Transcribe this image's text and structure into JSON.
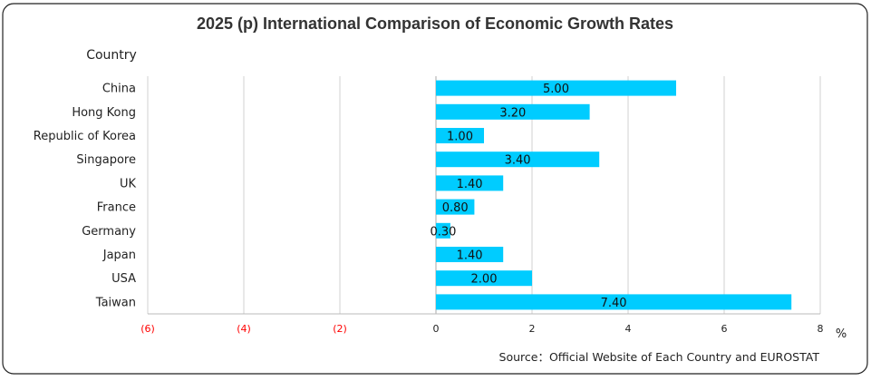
{
  "chart_data": {
    "type": "bar",
    "orientation": "horizontal",
    "title": "2025 (p) International Comparison of Economic Growth Rates",
    "ylabel": "Country",
    "xlabel": "%",
    "source": "Source：Official Website of Each Country and EUROSTAT",
    "categories": [
      "China",
      "Hong Kong",
      "Republic of Korea",
      "Singapore",
      "UK",
      "France",
      "Germany",
      "Japan",
      "USA",
      "Taiwan"
    ],
    "values": [
      5.0,
      3.2,
      1.0,
      3.4,
      1.4,
      0.8,
      0.3,
      1.4,
      2.0,
      7.4
    ],
    "data_labels": [
      "5.00",
      "3.20",
      "1.00",
      "3.40",
      "1.40",
      "0.80",
      "0.30",
      "1.40",
      "2.00",
      "7.40"
    ],
    "xlim": [
      -6,
      8
    ],
    "xticks": [
      -6,
      -4,
      -2,
      0,
      2,
      4,
      6,
      8
    ],
    "xtick_labels": [
      "(6)",
      "(4)",
      "(2)",
      "0",
      "2",
      "4",
      "6",
      "8"
    ],
    "grid": true,
    "colors": {
      "bar": "#00CCFF",
      "negative_tick": "#FF0000",
      "grid": "#D0D0D0"
    }
  }
}
